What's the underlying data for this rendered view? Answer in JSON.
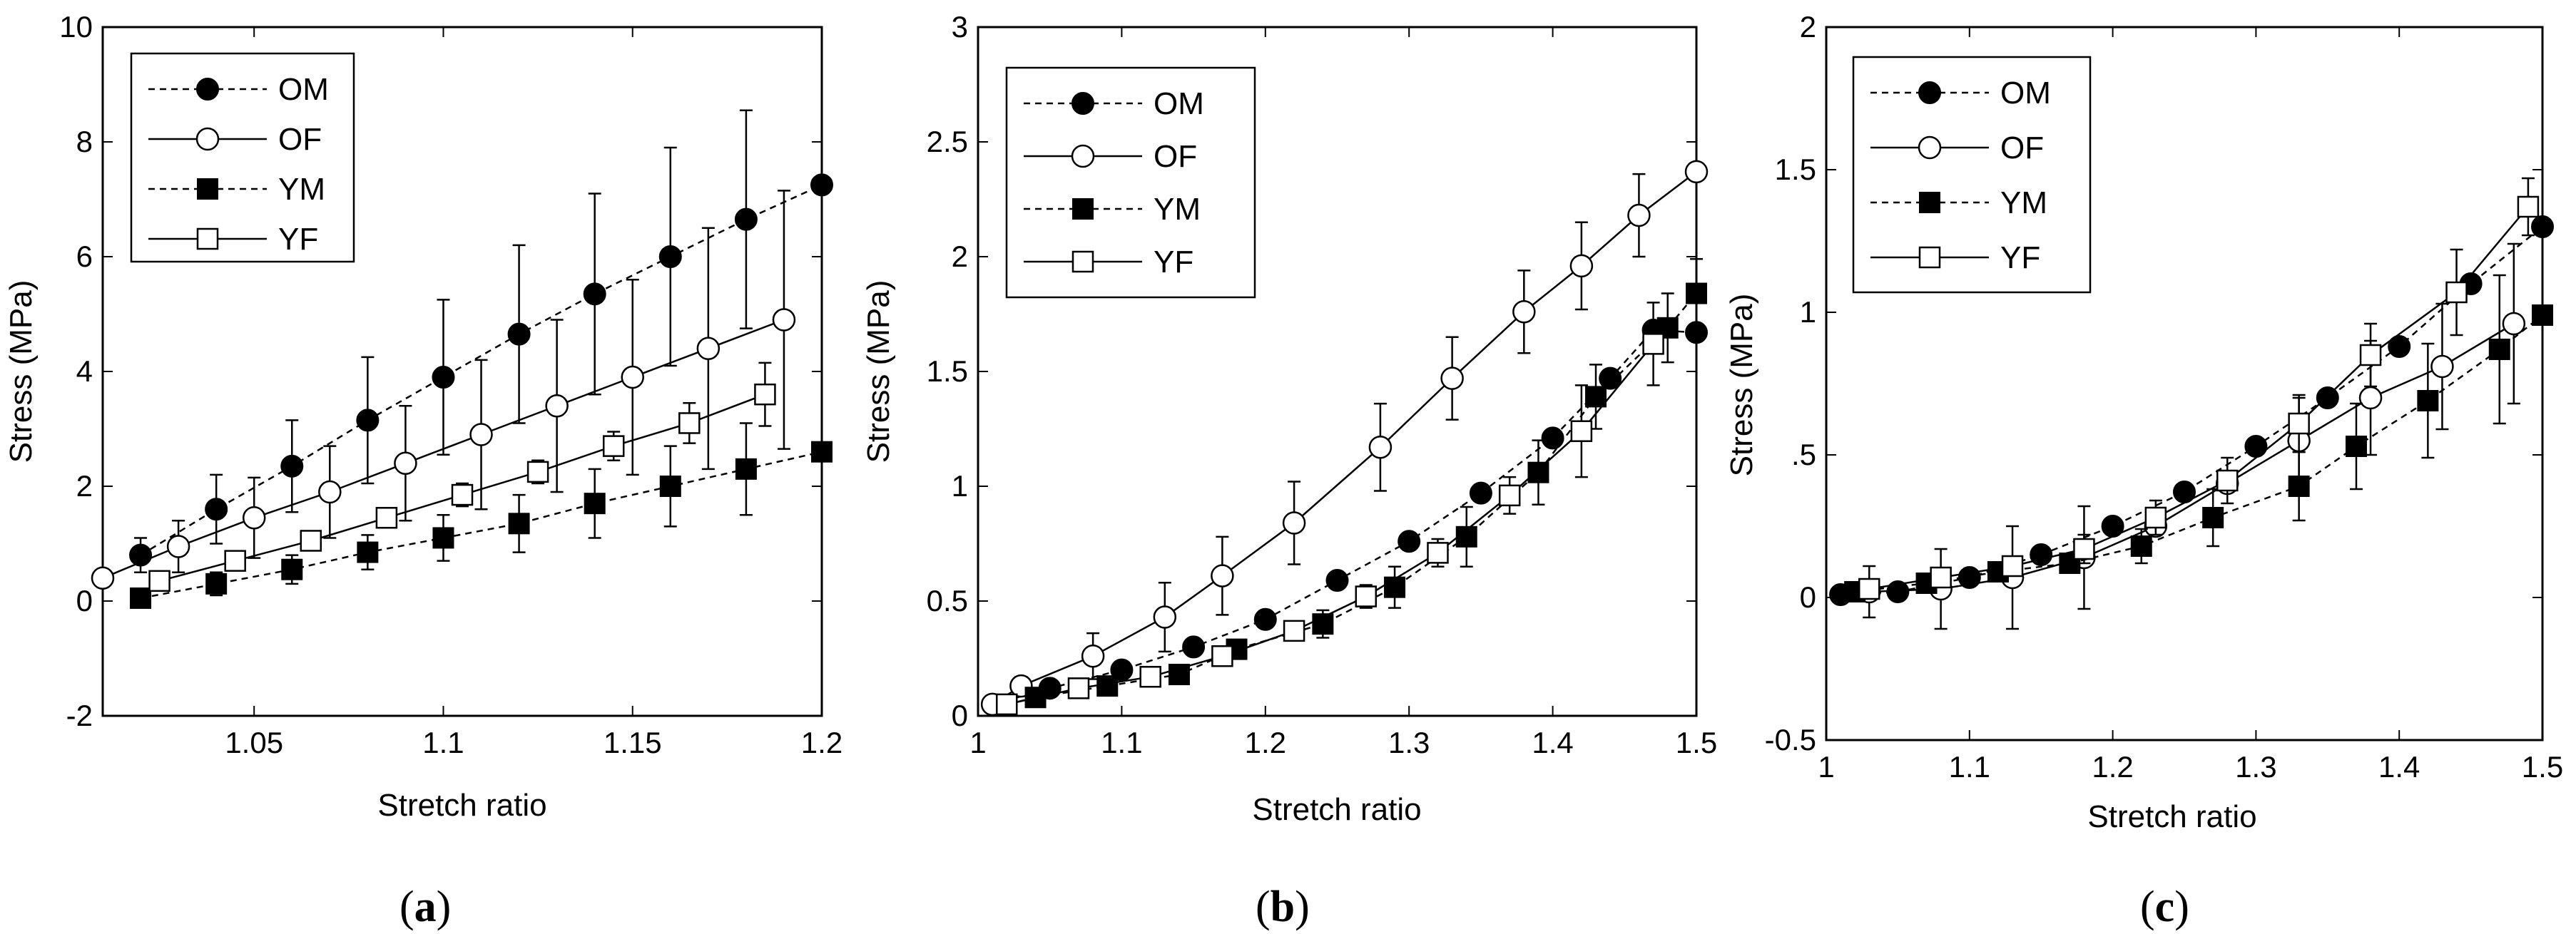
{
  "chart_data": [
    {
      "type": "line",
      "panel": "a",
      "xlabel": "Stretch ratio",
      "ylabel": "Stress (MPa)",
      "xlim": [
        1.01,
        1.2
      ],
      "ylim": [
        -2,
        10
      ],
      "xticks": [
        1.05,
        1.1,
        1.15,
        1.2
      ],
      "xticklabels": [
        "1.05",
        "1.1",
        "1.15",
        "1.2"
      ],
      "yticks": [
        -2,
        0,
        2,
        4,
        6,
        8,
        10
      ],
      "yticklabels": [
        "-2",
        "0",
        "2",
        "4",
        "6",
        "8",
        "10"
      ],
      "legend_position": "top-left",
      "series": [
        {
          "name": "OM",
          "marker": "filled-circle",
          "line": "dashed",
          "x": [
            1.02,
            1.04,
            1.06,
            1.08,
            1.1,
            1.12,
            1.14,
            1.16,
            1.18,
            1.2
          ],
          "y": [
            0.8,
            1.6,
            2.35,
            3.15,
            3.9,
            4.65,
            5.35,
            6.0,
            6.65,
            7.25
          ],
          "err": [
            0.3,
            0.6,
            0.8,
            1.1,
            1.35,
            1.55,
            1.75,
            1.9,
            1.9,
            0.0
          ]
        },
        {
          "name": "OF",
          "marker": "open-circle",
          "line": "solid",
          "x": [
            1.01,
            1.03,
            1.05,
            1.07,
            1.09,
            1.11,
            1.13,
            1.15,
            1.17,
            1.19
          ],
          "y": [
            0.4,
            0.95,
            1.45,
            1.9,
            2.4,
            2.9,
            3.4,
            3.9,
            4.4,
            4.9
          ],
          "err": [
            0.0,
            0.45,
            0.7,
            0.8,
            1.0,
            1.3,
            1.5,
            1.7,
            2.1,
            2.25
          ]
        },
        {
          "name": "YM",
          "marker": "filled-square",
          "line": "dashed",
          "x": [
            1.02,
            1.04,
            1.06,
            1.08,
            1.1,
            1.12,
            1.14,
            1.16,
            1.18,
            1.2
          ],
          "y": [
            0.05,
            0.3,
            0.55,
            0.85,
            1.1,
            1.35,
            1.7,
            2.0,
            2.3,
            2.6
          ],
          "err": [
            0.0,
            0.2,
            0.25,
            0.3,
            0.4,
            0.5,
            0.6,
            0.7,
            0.8,
            0.0
          ]
        },
        {
          "name": "YF",
          "marker": "open-square",
          "line": "solid",
          "x": [
            1.025,
            1.045,
            1.065,
            1.085,
            1.105,
            1.125,
            1.145,
            1.165,
            1.185
          ],
          "y": [
            0.35,
            0.7,
            1.05,
            1.45,
            1.85,
            2.25,
            2.7,
            3.1,
            3.6
          ],
          "err": [
            0.0,
            0.1,
            0.1,
            0.15,
            0.2,
            0.2,
            0.25,
            0.35,
            0.55
          ]
        }
      ]
    },
    {
      "type": "line",
      "panel": "b",
      "xlabel": "Stretch ratio",
      "ylabel": "Stress (MPa)",
      "xlim": [
        1.0,
        1.5
      ],
      "ylim": [
        0,
        3
      ],
      "xticks": [
        1.0,
        1.1,
        1.2,
        1.3,
        1.4,
        1.5
      ],
      "xticklabels": [
        "1",
        "1.1",
        "1.2",
        "1.3",
        "1.4",
        "1.5"
      ],
      "yticks": [
        0,
        0.5,
        1,
        1.5,
        2,
        2.5,
        3
      ],
      "yticklabels": [
        "0",
        "0.5",
        "1",
        "1.5",
        "2",
        "2.5",
        "3"
      ],
      "legend_position": "top-left",
      "series": [
        {
          "name": "OM",
          "marker": "filled-circle",
          "line": "dashed",
          "x": [
            1.01,
            1.05,
            1.1,
            1.15,
            1.2,
            1.25,
            1.3,
            1.35,
            1.4,
            1.44,
            1.47,
            1.5
          ],
          "y": [
            0.05,
            0.12,
            0.2,
            0.3,
            0.42,
            0.59,
            0.76,
            0.97,
            1.21,
            1.47,
            1.68,
            1.67
          ],
          "err": [
            0,
            0,
            0,
            0,
            0,
            0,
            0,
            0,
            0,
            0,
            0,
            0
          ]
        },
        {
          "name": "OF",
          "marker": "open-circle",
          "line": "solid",
          "x": [
            1.01,
            1.03,
            1.08,
            1.13,
            1.17,
            1.22,
            1.28,
            1.33,
            1.38,
            1.42,
            1.46,
            1.5
          ],
          "y": [
            0.05,
            0.13,
            0.26,
            0.43,
            0.61,
            0.84,
            1.17,
            1.47,
            1.76,
            1.96,
            2.18,
            2.37
          ],
          "err": [
            0.0,
            0.04,
            0.1,
            0.15,
            0.17,
            0.18,
            0.19,
            0.18,
            0.18,
            0.19,
            0.18,
            0.0
          ]
        },
        {
          "name": "YM",
          "marker": "filled-square",
          "line": "dashed",
          "x": [
            1.02,
            1.04,
            1.09,
            1.14,
            1.18,
            1.24,
            1.29,
            1.34,
            1.39,
            1.43,
            1.48,
            1.5
          ],
          "y": [
            0.05,
            0.08,
            0.13,
            0.18,
            0.29,
            0.4,
            0.56,
            0.78,
            1.06,
            1.39,
            1.69,
            1.84
          ],
          "err": [
            0.0,
            0.0,
            0.02,
            0.03,
            0.04,
            0.06,
            0.09,
            0.13,
            0.14,
            0.14,
            0.15,
            0.15
          ]
        },
        {
          "name": "YF",
          "marker": "open-square",
          "line": "solid",
          "x": [
            1.02,
            1.07,
            1.12,
            1.17,
            1.22,
            1.27,
            1.32,
            1.37,
            1.42,
            1.47
          ],
          "y": [
            0.05,
            0.12,
            0.17,
            0.26,
            0.37,
            0.52,
            0.71,
            0.96,
            1.24,
            1.62
          ],
          "err": [
            0.0,
            0.0,
            0.0,
            0.02,
            0.03,
            0.05,
            0.06,
            0.08,
            0.2,
            0.18
          ]
        }
      ]
    },
    {
      "type": "line",
      "panel": "c",
      "xlabel": "Stretch ratio",
      "ylabel": "Stress (MPa)",
      "xlim": [
        1.0,
        1.5
      ],
      "ylim": [
        -0.5,
        2
      ],
      "xticks": [
        1.0,
        1.1,
        1.2,
        1.3,
        1.4,
        1.5
      ],
      "xticklabels": [
        "1",
        "1.1",
        "1.2",
        "1.3",
        "1.4",
        "1.5"
      ],
      "yticks": [
        -0.5,
        0,
        0.5,
        1,
        1.5,
        2
      ],
      "yticklabels": [
        "-0.5",
        "0",
        ".5",
        "1",
        "1.5",
        "2"
      ],
      "legend_position": "top-left",
      "series": [
        {
          "name": "OM",
          "marker": "filled-circle",
          "line": "dashed",
          "x": [
            1.01,
            1.05,
            1.1,
            1.15,
            1.2,
            1.25,
            1.3,
            1.35,
            1.4,
            1.45,
            1.5
          ],
          "y": [
            0.01,
            0.02,
            0.07,
            0.15,
            0.25,
            0.37,
            0.53,
            0.7,
            0.88,
            1.1,
            1.3
          ],
          "err": [
            0,
            0,
            0,
            0,
            0,
            0,
            0,
            0,
            0,
            0,
            0
          ]
        },
        {
          "name": "OF",
          "marker": "open-circle",
          "line": "solid",
          "x": [
            1.03,
            1.08,
            1.13,
            1.18,
            1.23,
            1.28,
            1.33,
            1.38,
            1.43,
            1.48
          ],
          "y": [
            0.02,
            0.03,
            0.07,
            0.14,
            0.25,
            0.4,
            0.55,
            0.7,
            0.81,
            0.96
          ],
          "err": [
            0.09,
            0.14,
            0.18,
            0.18,
            0.0,
            0.0,
            0.15,
            0.2,
            0.22,
            0.28
          ]
        },
        {
          "name": "YM",
          "marker": "filled-square",
          "line": "dashed",
          "x": [
            1.02,
            1.07,
            1.12,
            1.17,
            1.22,
            1.27,
            1.33,
            1.37,
            1.42,
            1.47,
            1.5
          ],
          "y": [
            0.02,
            0.05,
            0.09,
            0.12,
            0.18,
            0.28,
            0.39,
            0.53,
            0.69,
            0.87,
            0.99
          ],
          "err": [
            0.0,
            0.0,
            0.0,
            0.0,
            0.06,
            0.1,
            0.12,
            0.15,
            0.2,
            0.26,
            0.0
          ]
        },
        {
          "name": "YF",
          "marker": "open-square",
          "line": "solid",
          "x": [
            1.03,
            1.08,
            1.13,
            1.18,
            1.23,
            1.28,
            1.33,
            1.38,
            1.44,
            1.49
          ],
          "y": [
            0.03,
            0.07,
            0.11,
            0.17,
            0.28,
            0.41,
            0.61,
            0.85,
            1.07,
            1.37
          ],
          "err": [
            0.0,
            0.0,
            0.0,
            0.05,
            0.06,
            0.08,
            0.1,
            0.11,
            0.15,
            0.1
          ]
        }
      ]
    }
  ],
  "panels": {
    "a": {
      "label_open": "(",
      "letter": "a",
      "label_close": ")"
    },
    "b": {
      "label_open": "(",
      "letter": "b",
      "label_close": ")"
    },
    "c": {
      "label_open": "(",
      "letter": "c",
      "label_close": ")"
    }
  }
}
